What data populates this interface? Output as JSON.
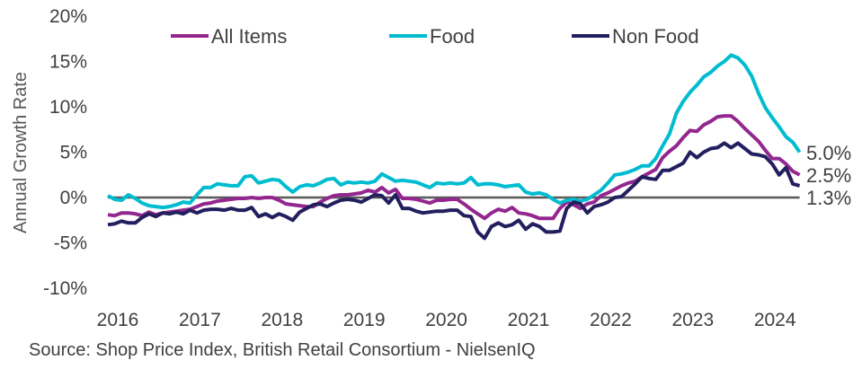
{
  "chart_data": {
    "type": "line",
    "title": "",
    "xlabel": "",
    "ylabel": "Annual Growth Rate",
    "x_start": "2015-09",
    "x_frequency": "monthly",
    "x_ticks": [
      "2016",
      "2017",
      "2018",
      "2019",
      "2020",
      "2021",
      "2022",
      "2023",
      "2024"
    ],
    "y_ticks": [
      "20%",
      "15%",
      "10%",
      "5%",
      "0%",
      "-5%",
      "-10%"
    ],
    "y_tick_values": [
      20,
      15,
      10,
      5,
      0,
      -5,
      -10
    ],
    "ylim": [
      -10,
      20
    ],
    "grid": false,
    "zero_line": true,
    "legend_position": "top",
    "series": [
      {
        "name": "All Items",
        "color": "#93278f",
        "end_label": "2.5%",
        "values": [
          -1.9,
          -2.0,
          -1.7,
          -1.7,
          -1.8,
          -2.0,
          -1.6,
          -1.9,
          -1.7,
          -1.6,
          -1.5,
          -1.4,
          -1.3,
          -1.0,
          -0.7,
          -0.6,
          -0.4,
          -0.3,
          -0.2,
          -0.1,
          -0.1,
          0.0,
          -0.1,
          0.0,
          0.0,
          -0.3,
          -0.7,
          -0.8,
          -0.9,
          -1.0,
          -1.0,
          -0.5,
          -0.1,
          0.2,
          0.3,
          0.3,
          0.4,
          0.5,
          0.8,
          0.6,
          1.1,
          0.5,
          0.9,
          -0.1,
          -0.1,
          -0.2,
          -0.4,
          -0.6,
          -0.3,
          -0.3,
          -0.2,
          -0.2,
          -0.7,
          -1.3,
          -1.8,
          -2.3,
          -1.7,
          -1.3,
          -1.5,
          -1.1,
          -1.7,
          -1.8,
          -2.0,
          -2.3,
          -2.3,
          -2.3,
          -1.2,
          -0.5,
          -0.8,
          -1.2,
          -0.7,
          -0.5,
          0.2,
          0.5,
          0.9,
          1.3,
          1.6,
          1.8,
          2.3,
          2.7,
          3.1,
          4.4,
          5.1,
          5.7,
          6.6,
          7.4,
          7.3,
          8.0,
          8.4,
          8.9,
          9.0,
          9.0,
          8.4,
          7.6,
          6.9,
          6.2,
          5.2,
          4.3,
          4.3,
          3.7,
          2.9,
          2.5
        ]
      },
      {
        "name": "Food",
        "color": "#00bcd0",
        "end_label": "5.0%",
        "values": [
          0.2,
          -0.2,
          -0.3,
          0.3,
          -0.1,
          -0.6,
          -0.9,
          -1.0,
          -1.1,
          -1.0,
          -0.8,
          -0.5,
          -0.6,
          0.3,
          1.1,
          1.1,
          1.5,
          1.4,
          1.3,
          1.3,
          2.3,
          2.4,
          1.6,
          1.8,
          2.0,
          1.9,
          1.2,
          0.6,
          1.2,
          1.4,
          1.3,
          1.6,
          2.0,
          2.1,
          1.4,
          1.7,
          1.6,
          1.7,
          1.6,
          1.8,
          2.6,
          2.2,
          1.8,
          1.9,
          1.8,
          1.7,
          1.4,
          1.1,
          1.6,
          1.5,
          1.6,
          1.5,
          1.6,
          2.2,
          1.4,
          1.5,
          1.5,
          1.4,
          1.2,
          1.3,
          1.4,
          0.6,
          0.4,
          0.5,
          0.3,
          -0.2,
          -0.6,
          -0.3,
          -0.2,
          -0.4,
          -0.2,
          0.3,
          0.8,
          1.6,
          2.5,
          2.6,
          2.8,
          3.1,
          3.5,
          3.5,
          4.3,
          5.7,
          7.0,
          9.3,
          10.6,
          11.6,
          12.4,
          13.3,
          13.8,
          14.5,
          15.0,
          15.7,
          15.4,
          14.6,
          13.4,
          11.5,
          9.9,
          8.8,
          7.8,
          6.7,
          6.1,
          5.0
        ]
      },
      {
        "name": "Non Food",
        "color": "#231f5f",
        "end_label": "1.3%",
        "values": [
          -3.0,
          -2.9,
          -2.6,
          -2.8,
          -2.8,
          -2.2,
          -1.8,
          -2.1,
          -1.7,
          -1.8,
          -1.6,
          -1.8,
          -1.4,
          -1.7,
          -1.4,
          -1.3,
          -1.3,
          -1.4,
          -1.2,
          -1.4,
          -1.4,
          -1.1,
          -2.1,
          -1.8,
          -2.2,
          -1.8,
          -2.1,
          -2.5,
          -1.6,
          -1.2,
          -0.8,
          -0.7,
          -1.0,
          -0.6,
          -0.3,
          -0.2,
          -0.3,
          -0.5,
          -0.1,
          0.3,
          0.2,
          -0.6,
          0.3,
          -1.2,
          -1.2,
          -1.5,
          -1.7,
          -1.6,
          -1.5,
          -1.5,
          -1.4,
          -1.4,
          -2.0,
          -2.1,
          -3.8,
          -4.5,
          -3.2,
          -2.8,
          -3.2,
          -3.0,
          -2.5,
          -3.5,
          -2.9,
          -3.2,
          -3.8,
          -3.8,
          -3.7,
          -1.2,
          -0.5,
          -0.7,
          -1.7,
          -1.0,
          -0.8,
          -0.5,
          0.0,
          0.1,
          0.8,
          1.5,
          2.3,
          2.1,
          2.0,
          3.0,
          3.0,
          3.4,
          3.8,
          5.0,
          4.4,
          5.0,
          5.4,
          5.5,
          6.0,
          5.5,
          6.0,
          5.4,
          4.8,
          4.7,
          4.5,
          3.7,
          2.5,
          3.3,
          1.5,
          1.3
        ]
      }
    ],
    "source": "Source: Shop Price Index, British Retail Consortium - NielsenIQ"
  }
}
